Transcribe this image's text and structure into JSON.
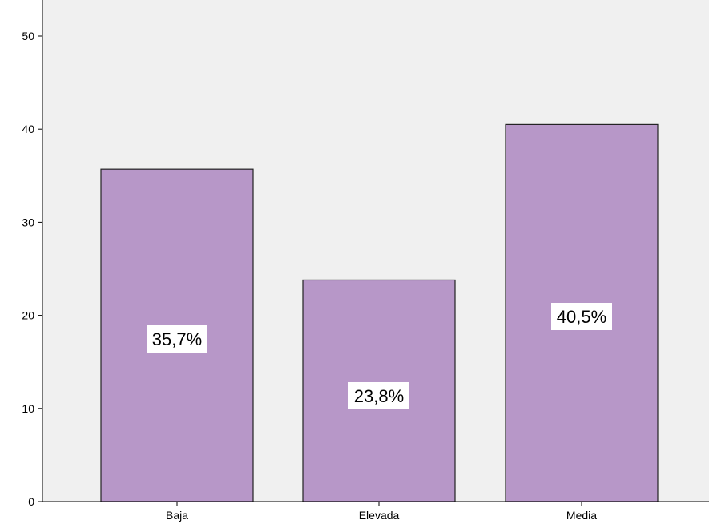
{
  "chart_data": {
    "type": "bar",
    "categories": [
      "Baja",
      "Elevada",
      "Media"
    ],
    "values": [
      35.7,
      23.8,
      40.5
    ],
    "data_labels": [
      "35,7%",
      "23,8%",
      "40,5%"
    ],
    "ylim": [
      0,
      52
    ],
    "yticks": [
      0,
      10,
      20,
      30,
      40,
      50
    ],
    "ytick_labels": [
      "0",
      "10",
      "20",
      "30",
      "40",
      "50"
    ],
    "grid": false,
    "legend": "none",
    "colors": {
      "bar_fill": "#b797c8",
      "bar_stroke": "#222222",
      "plot_background": "#f0f0f0",
      "axis": "#000000",
      "label_background": "#ffffff"
    }
  }
}
